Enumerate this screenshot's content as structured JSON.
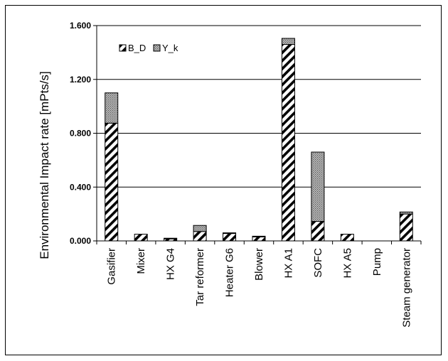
{
  "chart_data": {
    "type": "bar",
    "stacked": true,
    "title": "",
    "xlabel": "",
    "ylabel": "Environmental Impact rate  [mPts/s]",
    "ylim": [
      0,
      1.6
    ],
    "yticks": [
      "0.000",
      "0.400",
      "0.800",
      "1.200",
      "1.600"
    ],
    "grid": true,
    "legend_position": "top-left",
    "categories": [
      "Gasifier",
      "Mixer",
      "HX G4",
      "Tar reformer",
      "Heater G6",
      "Blower",
      "HX A1",
      "SOFC",
      "HX A5",
      "Pump",
      "Steam generator"
    ],
    "series": [
      {
        "name": "B_D",
        "pattern": "diagonal-hatch",
        "color": "#000000",
        "values": [
          0.875,
          0.05,
          0.015,
          0.07,
          0.055,
          0.03,
          1.46,
          0.145,
          0.05,
          0.0,
          0.2
        ]
      },
      {
        "name": "Y_k",
        "pattern": "dotted",
        "color": "#999999",
        "values": [
          0.225,
          0.0,
          0.005,
          0.045,
          0.005,
          0.005,
          0.045,
          0.515,
          0.0,
          0.0,
          0.015
        ]
      }
    ]
  }
}
